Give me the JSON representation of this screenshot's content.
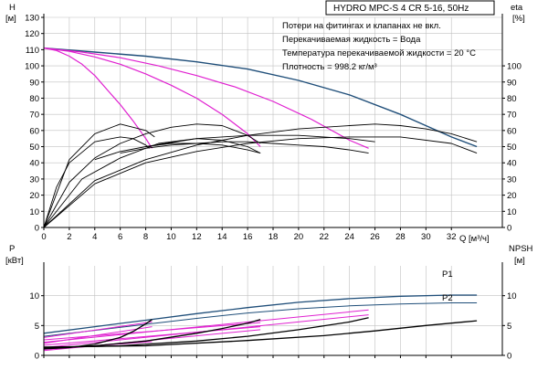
{
  "title": "HYDRO MPC-S 4 CR 5-16, 50Hz",
  "notes": [
    "Потери на фитингах и клапанах не вкл.",
    "Перекачиваемая жидкость = Вода",
    "Температура перекачиваемой жидкости = 20 °C",
    "Плотность = 998.2 кг/м³"
  ],
  "colors": {
    "axis": "#000000",
    "grid": "#c0c0c0",
    "h_max": "#1f4e79",
    "throttled": "#e020d0",
    "eta": "#000000",
    "power_p1": "#1f4e79",
    "power_p2": "#1f4e79",
    "npsh": "#000000"
  },
  "chart_data": [
    {
      "type": "line",
      "name": "upper",
      "x_label": "Q [м³/ч]",
      "xlim": [
        0,
        36
      ],
      "x_ticks": [
        0,
        2,
        4,
        6,
        8,
        10,
        12,
        14,
        16,
        18,
        20,
        22,
        24,
        26,
        28,
        30,
        32
      ],
      "y_left": {
        "label_top": "H",
        "label_unit": "[м]",
        "lim": [
          0,
          130
        ],
        "ticks": [
          0,
          10,
          20,
          30,
          40,
          50,
          60,
          70,
          80,
          90,
          100,
          110,
          120,
          130
        ]
      },
      "y_right": {
        "label_top": "eta",
        "label_unit": "[%]",
        "lim": [
          0,
          130
        ],
        "ticks": [
          0,
          10,
          20,
          30,
          40,
          50,
          60,
          70,
          80,
          90,
          100
        ]
      },
      "grid": true,
      "series": [
        {
          "kind": "head_max",
          "axis": "left",
          "x": [
            0,
            4,
            8,
            12,
            16,
            20,
            24,
            28,
            32,
            34
          ],
          "y": [
            111,
            108.5,
            106,
            102.5,
            98,
            91,
            82,
            70,
            56,
            50
          ]
        },
        {
          "kind": "head_throttled",
          "axis": "left",
          "x": [
            0,
            1,
            2,
            3,
            4,
            5,
            6,
            7,
            8,
            8.5
          ],
          "y": [
            111,
            109.5,
            106,
            101,
            94,
            85,
            76,
            66,
            55,
            49
          ]
        },
        {
          "kind": "head_throttled",
          "axis": "left",
          "x": [
            0,
            2,
            4,
            6,
            8,
            10,
            12,
            14,
            16,
            17
          ],
          "y": [
            111,
            109,
            105.5,
            101,
            95,
            88,
            80,
            70,
            58,
            50
          ]
        },
        {
          "kind": "head_throttled",
          "axis": "left",
          "x": [
            0,
            3,
            6,
            9,
            12,
            15,
            18,
            21,
            24,
            25.5
          ],
          "y": [
            111,
            108.5,
            105,
            100,
            94,
            87,
            78,
            67,
            54,
            49
          ]
        },
        {
          "kind": "eta",
          "axis": "right",
          "x": [
            0,
            2,
            4,
            6,
            8,
            8.7
          ],
          "y": [
            0,
            42,
            58,
            64,
            60,
            56
          ]
        },
        {
          "kind": "eta",
          "axis": "right",
          "x": [
            0,
            1,
            2,
            4,
            6,
            7,
            8,
            8.3
          ],
          "y": [
            0,
            25,
            40,
            53,
            56,
            55,
            51,
            49
          ]
        },
        {
          "kind": "eta",
          "axis": "right",
          "x": [
            0,
            2,
            4,
            6,
            8,
            10,
            12,
            14,
            16,
            17
          ],
          "y": [
            0,
            28,
            43,
            52,
            58,
            62,
            64,
            63,
            57,
            52
          ]
        },
        {
          "kind": "eta",
          "axis": "right",
          "x": [
            0,
            3,
            6,
            9,
            12,
            14,
            16,
            17
          ],
          "y": [
            0,
            30,
            43,
            52,
            55,
            54,
            50,
            46
          ]
        },
        {
          "kind": "eta",
          "axis": "right",
          "x": [
            0,
            4,
            8,
            12,
            16,
            20,
            24,
            26,
            28,
            30,
            32,
            34
          ],
          "y": [
            0,
            29,
            42,
            51,
            57,
            61,
            63,
            64,
            63,
            61,
            58,
            53
          ]
        },
        {
          "kind": "eta",
          "axis": "right",
          "x": [
            0,
            4,
            8,
            12,
            16,
            20,
            24,
            28,
            32,
            34
          ],
          "y": [
            0,
            27,
            40,
            47,
            52,
            55,
            56,
            56,
            52,
            46
          ]
        },
        {
          "kind": "eta",
          "axis": "right",
          "x": [
            4,
            6,
            8,
            10,
            12,
            14,
            16,
            17
          ],
          "y": [
            42,
            47,
            50,
            52,
            52,
            51,
            48,
            46
          ]
        },
        {
          "kind": "eta",
          "axis": "right",
          "x": [
            6,
            8,
            10,
            12,
            14,
            16,
            18,
            20,
            22,
            24,
            25.5
          ],
          "y": [
            46,
            49,
            51,
            52,
            53,
            53,
            52,
            51,
            50,
            48,
            46
          ]
        },
        {
          "kind": "eta",
          "axis": "right",
          "x": [
            8,
            12,
            16,
            20,
            24,
            26
          ],
          "y": [
            50,
            55,
            57,
            57,
            55,
            53
          ]
        }
      ]
    },
    {
      "type": "line",
      "name": "lower",
      "xlim": [
        0,
        36
      ],
      "y_left": {
        "label_top": "P",
        "label_unit": "[кВт]",
        "lim": [
          0,
          15
        ],
        "ticks": [
          0,
          5,
          10
        ]
      },
      "y_right": {
        "label_top": "NPSH",
        "label_unit": "[м]",
        "lim": [
          0,
          15
        ],
        "ticks": [
          0,
          5,
          10
        ]
      },
      "grid": true,
      "series_labels": [
        "P1",
        "P2"
      ],
      "series": [
        {
          "kind": "power_p1",
          "label": "P1",
          "axis": "left",
          "x": [
            0,
            4,
            8,
            12,
            16,
            20,
            24,
            28,
            32,
            34
          ],
          "y": [
            3.7,
            4.8,
            5.9,
            7.0,
            8.0,
            8.9,
            9.5,
            9.9,
            10.1,
            10.1
          ]
        },
        {
          "kind": "power_p2",
          "label": "P2",
          "axis": "left",
          "x": [
            0,
            4,
            8,
            12,
            16,
            20,
            24,
            28,
            32,
            34
          ],
          "y": [
            3.2,
            4.2,
            5.2,
            6.2,
            7.1,
            7.8,
            8.3,
            8.6,
            8.8,
            8.8
          ]
        },
        {
          "kind": "throttled",
          "axis": "left",
          "x": [
            0,
            8.5
          ],
          "y": [
            3.0,
            5.6
          ]
        },
        {
          "kind": "throttled",
          "axis": "left",
          "x": [
            0,
            17
          ],
          "y": [
            2.6,
            5.5
          ]
        },
        {
          "kind": "throttled",
          "axis": "left",
          "x": [
            0,
            25.5
          ],
          "y": [
            2.2,
            7.6
          ]
        },
        {
          "kind": "throttled",
          "axis": "left",
          "x": [
            0,
            8.5
          ],
          "y": [
            2.0,
            4.8
          ]
        },
        {
          "kind": "throttled",
          "axis": "left",
          "x": [
            0,
            17
          ],
          "y": [
            1.7,
            4.8
          ]
        },
        {
          "kind": "throttled",
          "axis": "left",
          "x": [
            0,
            25.5
          ],
          "y": [
            1.3,
            6.8
          ]
        },
        {
          "kind": "throttled",
          "axis": "left",
          "x": [
            0,
            8.5
          ],
          "y": [
            1.0,
            2.3
          ]
        },
        {
          "kind": "throttled",
          "axis": "left",
          "x": [
            0,
            17
          ],
          "y": [
            0.8,
            4.3
          ]
        },
        {
          "kind": "npsh",
          "axis": "right",
          "x": [
            0,
            2,
            4,
            6,
            7,
            8,
            8.5
          ],
          "y": [
            1.1,
            1.3,
            1.9,
            3.0,
            4.0,
            5.3,
            6.0
          ]
        },
        {
          "kind": "npsh",
          "axis": "right",
          "x": [
            0,
            4,
            8,
            12,
            14,
            16,
            17
          ],
          "y": [
            1.2,
            1.6,
            2.4,
            3.7,
            4.5,
            5.4,
            6.0
          ]
        },
        {
          "kind": "npsh",
          "axis": "right",
          "x": [
            0,
            6,
            12,
            16,
            20,
            24,
            25.5
          ],
          "y": [
            1.3,
            1.6,
            2.4,
            3.2,
            4.3,
            5.6,
            6.3
          ]
        },
        {
          "kind": "npsh",
          "axis": "right",
          "x": [
            0,
            8,
            16,
            22,
            26,
            30,
            34
          ],
          "y": [
            1.4,
            1.6,
            2.5,
            3.3,
            4.1,
            5.0,
            5.8
          ]
        }
      ]
    }
  ]
}
